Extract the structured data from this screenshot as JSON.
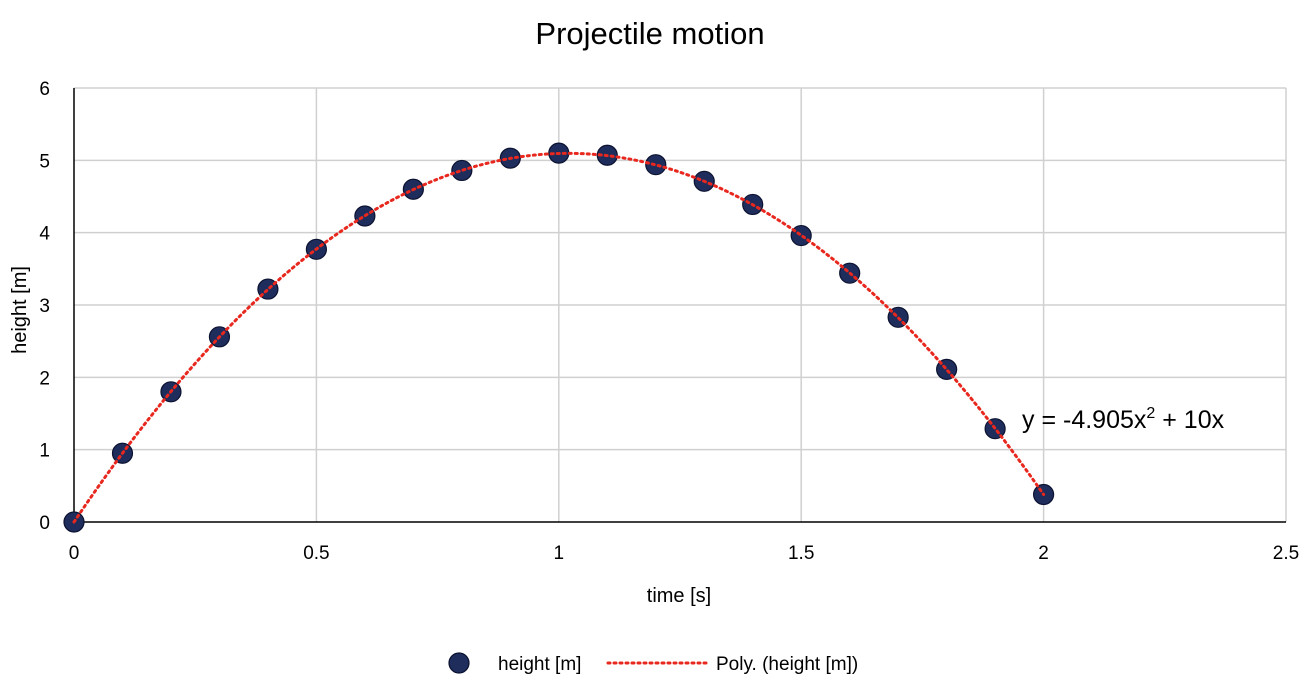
{
  "chart_data": {
    "type": "scatter",
    "title": "Projectile motion",
    "xlabel": "time [s]",
    "ylabel": "height [m]",
    "xlim": [
      0,
      2.5
    ],
    "ylim": [
      0,
      6
    ],
    "x_ticks": [
      "0",
      "0.5",
      "1",
      "1.5",
      "2",
      "2.5"
    ],
    "y_ticks": [
      "0",
      "1",
      "2",
      "3",
      "4",
      "5",
      "6"
    ],
    "grid": true,
    "legend_position": "bottom",
    "series": [
      {
        "name": "height [m]",
        "kind": "markers",
        "color": "#1f2d5c",
        "x": [
          0,
          0.1,
          0.2,
          0.3,
          0.4,
          0.5,
          0.6,
          0.7,
          0.8,
          0.9,
          1.0,
          1.1,
          1.2,
          1.3,
          1.4,
          1.5,
          1.6,
          1.7,
          1.8,
          1.9,
          2.0
        ],
        "y": [
          0,
          0.95,
          1.8,
          2.56,
          3.22,
          3.77,
          4.23,
          4.6,
          4.86,
          5.03,
          5.1,
          5.07,
          4.94,
          4.71,
          4.39,
          3.96,
          3.44,
          2.83,
          2.11,
          1.29,
          0.38
        ]
      },
      {
        "name": "Poly. (height [m])",
        "kind": "trendline",
        "color": "#e8281e",
        "equation": "y = -4.905x² + 10x",
        "coefficients": {
          "a": -4.905,
          "b": 10,
          "c": 0
        },
        "x_range": [
          0,
          2.0
        ]
      }
    ]
  }
}
